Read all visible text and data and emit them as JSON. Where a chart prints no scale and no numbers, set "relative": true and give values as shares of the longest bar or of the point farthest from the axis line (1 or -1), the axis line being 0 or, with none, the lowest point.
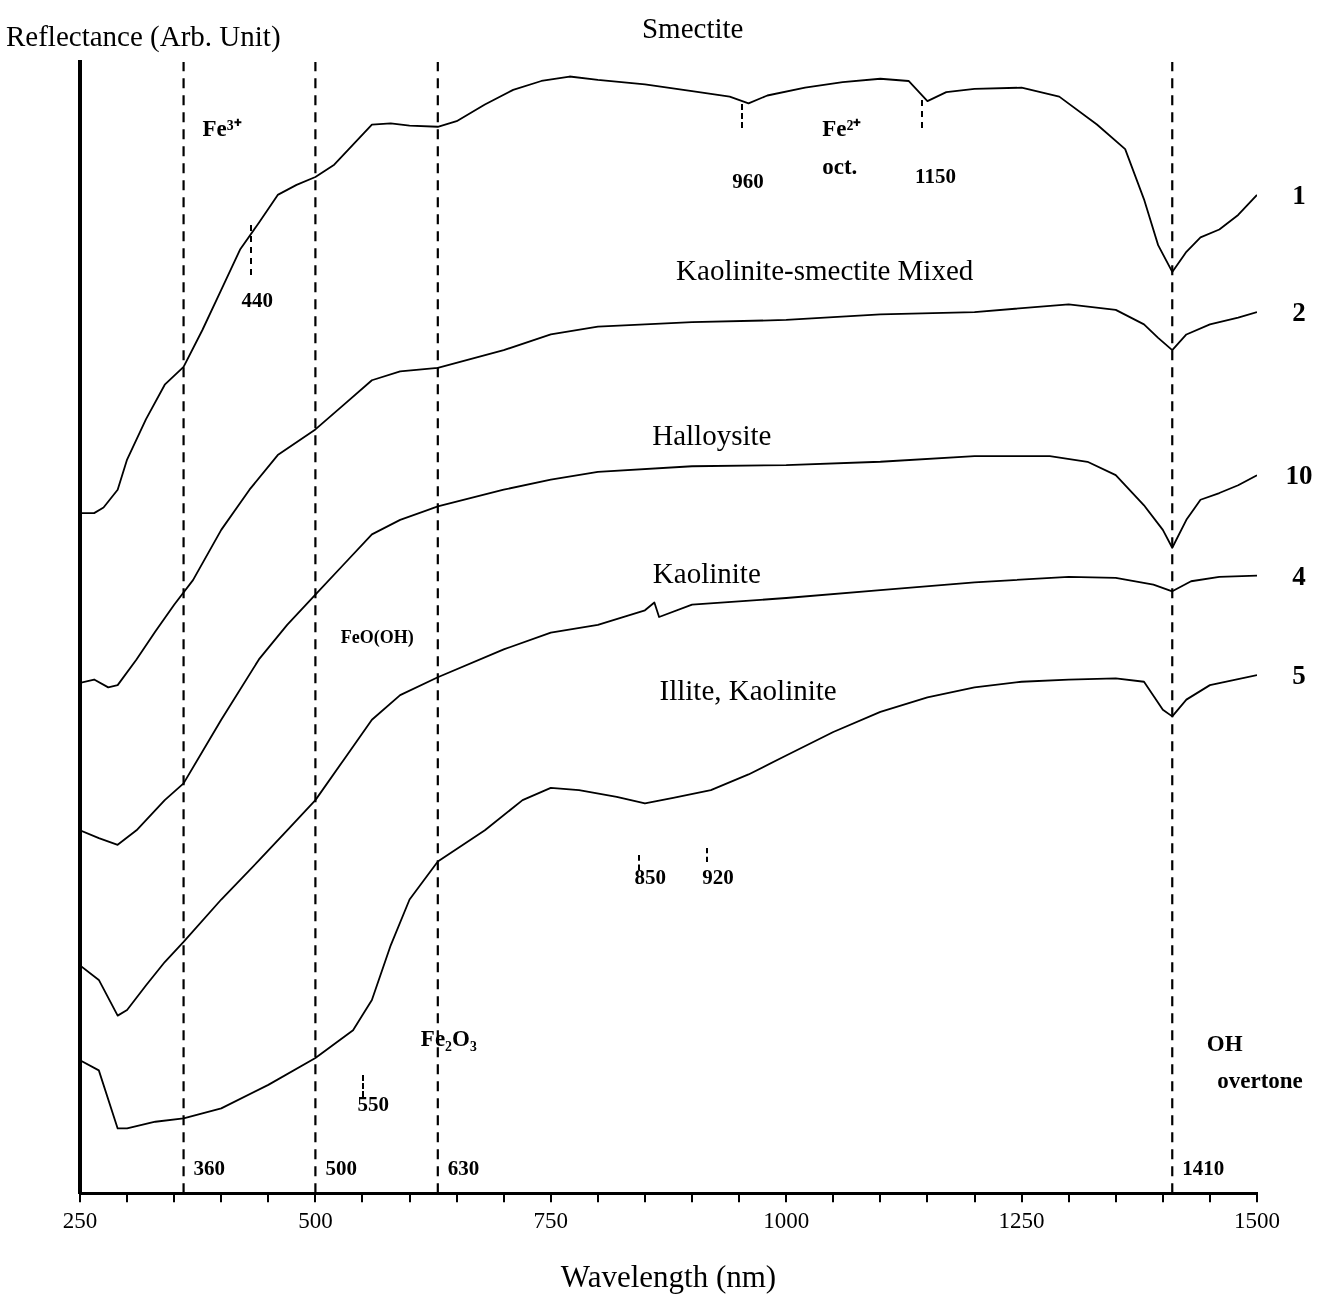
{
  "chart_data": {
    "type": "line",
    "relative": true,
    "ylabel": "Reflectance (Arb. Unit)",
    "xlabel": "Wavelength (nm)",
    "xlim": [
      250,
      1500
    ],
    "xticks": [
      250,
      {
        "value": 300,
        "label": null
      },
      {
        "value": 350,
        "label": null
      },
      {
        "value": 400,
        "label": null
      },
      {
        "value": 450,
        "label": null
      },
      500,
      {
        "value": 550,
        "label": null
      },
      {
        "value": 600,
        "label": null
      },
      {
        "value": 650,
        "label": null
      },
      {
        "value": 700,
        "label": null
      },
      750,
      {
        "value": 800,
        "label": null
      },
      {
        "value": 850,
        "label": null
      },
      {
        "value": 900,
        "label": null
      },
      {
        "value": 950,
        "label": null
      },
      1000,
      {
        "value": 1050,
        "label": null
      },
      {
        "value": 1100,
        "label": null
      },
      {
        "value": 1150,
        "label": null
      },
      {
        "value": 1200,
        "label": null
      },
      1250,
      {
        "value": 1300,
        "label": null
      },
      {
        "value": 1350,
        "label": null
      },
      {
        "value": 1400,
        "label": null
      },
      {
        "value": 1450,
        "label": null
      },
      1500
    ],
    "legend": false,
    "marker": "none",
    "line_style": "solid",
    "series": [
      {
        "name": "1",
        "color": "#000000",
        "x": [
          250,
          265,
          275,
          290,
          300,
          320,
          340,
          360,
          380,
          400,
          420,
          440,
          460,
          480,
          500,
          520,
          540,
          560,
          580,
          600,
          630,
          650,
          680,
          710,
          740,
          770,
          800,
          850,
          900,
          940,
          960,
          980,
          1020,
          1060,
          1100,
          1130,
          1150,
          1170,
          1200,
          1250,
          1290,
          1330,
          1360,
          1380,
          1395,
          1410,
          1425,
          1440,
          1460,
          1480,
          1500
        ],
        "values": [
          0.609,
          0.609,
          0.614,
          0.63,
          0.657,
          0.693,
          0.724,
          0.74,
          0.773,
          0.809,
          0.845,
          0.869,
          0.894,
          0.903,
          0.91,
          0.921,
          0.939,
          0.957,
          0.958,
          0.956,
          0.955,
          0.96,
          0.975,
          0.988,
          0.996,
          1.0,
          0.997,
          0.993,
          0.987,
          0.982,
          0.976,
          0.983,
          0.99,
          0.995,
          0.998,
          0.996,
          0.978,
          0.986,
          0.989,
          0.99,
          0.982,
          0.957,
          0.935,
          0.89,
          0.849,
          0.825,
          0.843,
          0.856,
          0.863,
          0.876,
          0.894
        ]
      },
      {
        "name": "2",
        "color": "#000000",
        "x": [
          250,
          265,
          280,
          290,
          310,
          330,
          350,
          370,
          400,
          430,
          460,
          500,
          530,
          560,
          590,
          630,
          700,
          750,
          800,
          900,
          1000,
          1100,
          1200,
          1300,
          1350,
          1380,
          1395,
          1410,
          1425,
          1450,
          1480,
          1500
        ],
        "values": [
          0.457,
          0.46,
          0.453,
          0.455,
          0.478,
          0.503,
          0.527,
          0.549,
          0.594,
          0.63,
          0.661,
          0.684,
          0.706,
          0.728,
          0.736,
          0.739,
          0.755,
          0.769,
          0.776,
          0.78,
          0.782,
          0.787,
          0.789,
          0.796,
          0.791,
          0.778,
          0.766,
          0.755,
          0.769,
          0.778,
          0.784,
          0.789
        ]
      },
      {
        "name": "10",
        "color": "#000000",
        "x": [
          250,
          270,
          290,
          310,
          340,
          360,
          400,
          440,
          470,
          500,
          530,
          560,
          590,
          630,
          700,
          750,
          800,
          900,
          1000,
          1100,
          1200,
          1280,
          1320,
          1350,
          1380,
          1400,
          1410,
          1425,
          1440,
          1460,
          1480,
          1500
        ],
        "values": [
          0.325,
          0.318,
          0.312,
          0.325,
          0.352,
          0.367,
          0.424,
          0.478,
          0.509,
          0.536,
          0.563,
          0.59,
          0.603,
          0.615,
          0.63,
          0.639,
          0.646,
          0.651,
          0.652,
          0.655,
          0.66,
          0.66,
          0.655,
          0.643,
          0.616,
          0.594,
          0.578,
          0.603,
          0.621,
          0.627,
          0.634,
          0.643
        ]
      },
      {
        "name": "4",
        "color": "#000000",
        "x": [
          250,
          270,
          290,
          300,
          320,
          340,
          360,
          400,
          440,
          470,
          500,
          530,
          560,
          590,
          630,
          700,
          750,
          800,
          850,
          860,
          865,
          900,
          1000,
          1100,
          1200,
          1300,
          1350,
          1390,
          1410,
          1430,
          1460,
          1500
        ],
        "values": [
          0.204,
          0.191,
          0.159,
          0.164,
          0.186,
          0.207,
          0.225,
          0.263,
          0.298,
          0.325,
          0.352,
          0.388,
          0.424,
          0.446,
          0.462,
          0.487,
          0.502,
          0.509,
          0.522,
          0.529,
          0.516,
          0.527,
          0.533,
          0.54,
          0.547,
          0.552,
          0.551,
          0.545,
          0.539,
          0.548,
          0.552,
          0.553
        ]
      },
      {
        "name": "5",
        "color": "#000000",
        "x": [
          250,
          270,
          290,
          300,
          330,
          360,
          400,
          450,
          500,
          540,
          560,
          580,
          600,
          630,
          680,
          720,
          750,
          780,
          820,
          850,
          880,
          920,
          960,
          1000,
          1050,
          1100,
          1150,
          1200,
          1250,
          1300,
          1350,
          1380,
          1400,
          1410,
          1425,
          1450,
          1500
        ],
        "values": [
          0.119,
          0.11,
          0.058,
          0.058,
          0.064,
          0.067,
          0.076,
          0.097,
          0.121,
          0.146,
          0.173,
          0.222,
          0.263,
          0.297,
          0.325,
          0.352,
          0.363,
          0.361,
          0.355,
          0.349,
          0.354,
          0.361,
          0.375,
          0.392,
          0.413,
          0.431,
          0.444,
          0.453,
          0.458,
          0.46,
          0.461,
          0.458,
          0.433,
          0.427,
          0.442,
          0.455,
          0.464
        ]
      }
    ],
    "ref_lines": [
      {
        "axis": "x",
        "value": 360,
        "label": "360",
        "line_style": "dashed"
      },
      {
        "axis": "x",
        "value": 500,
        "label": "500",
        "line_style": "dashed"
      },
      {
        "axis": "x",
        "value": 630,
        "label": "630",
        "line_style": "dashed"
      },
      {
        "axis": "x",
        "value": 1410,
        "label": "1410",
        "line_style": "dashed"
      }
    ],
    "annotations": [
      "Smectite",
      "Kaolinite-smectite Mixed",
      "Halloysite",
      "Kaolinite",
      "Illite, Kaolinite",
      "Fe³⁺",
      "Fe²⁺",
      "oct.",
      "FeO(OH)",
      "Fe₂O₃",
      "OH",
      "overtone",
      "440",
      "960",
      "1150",
      "550",
      "850",
      "920"
    ]
  }
}
